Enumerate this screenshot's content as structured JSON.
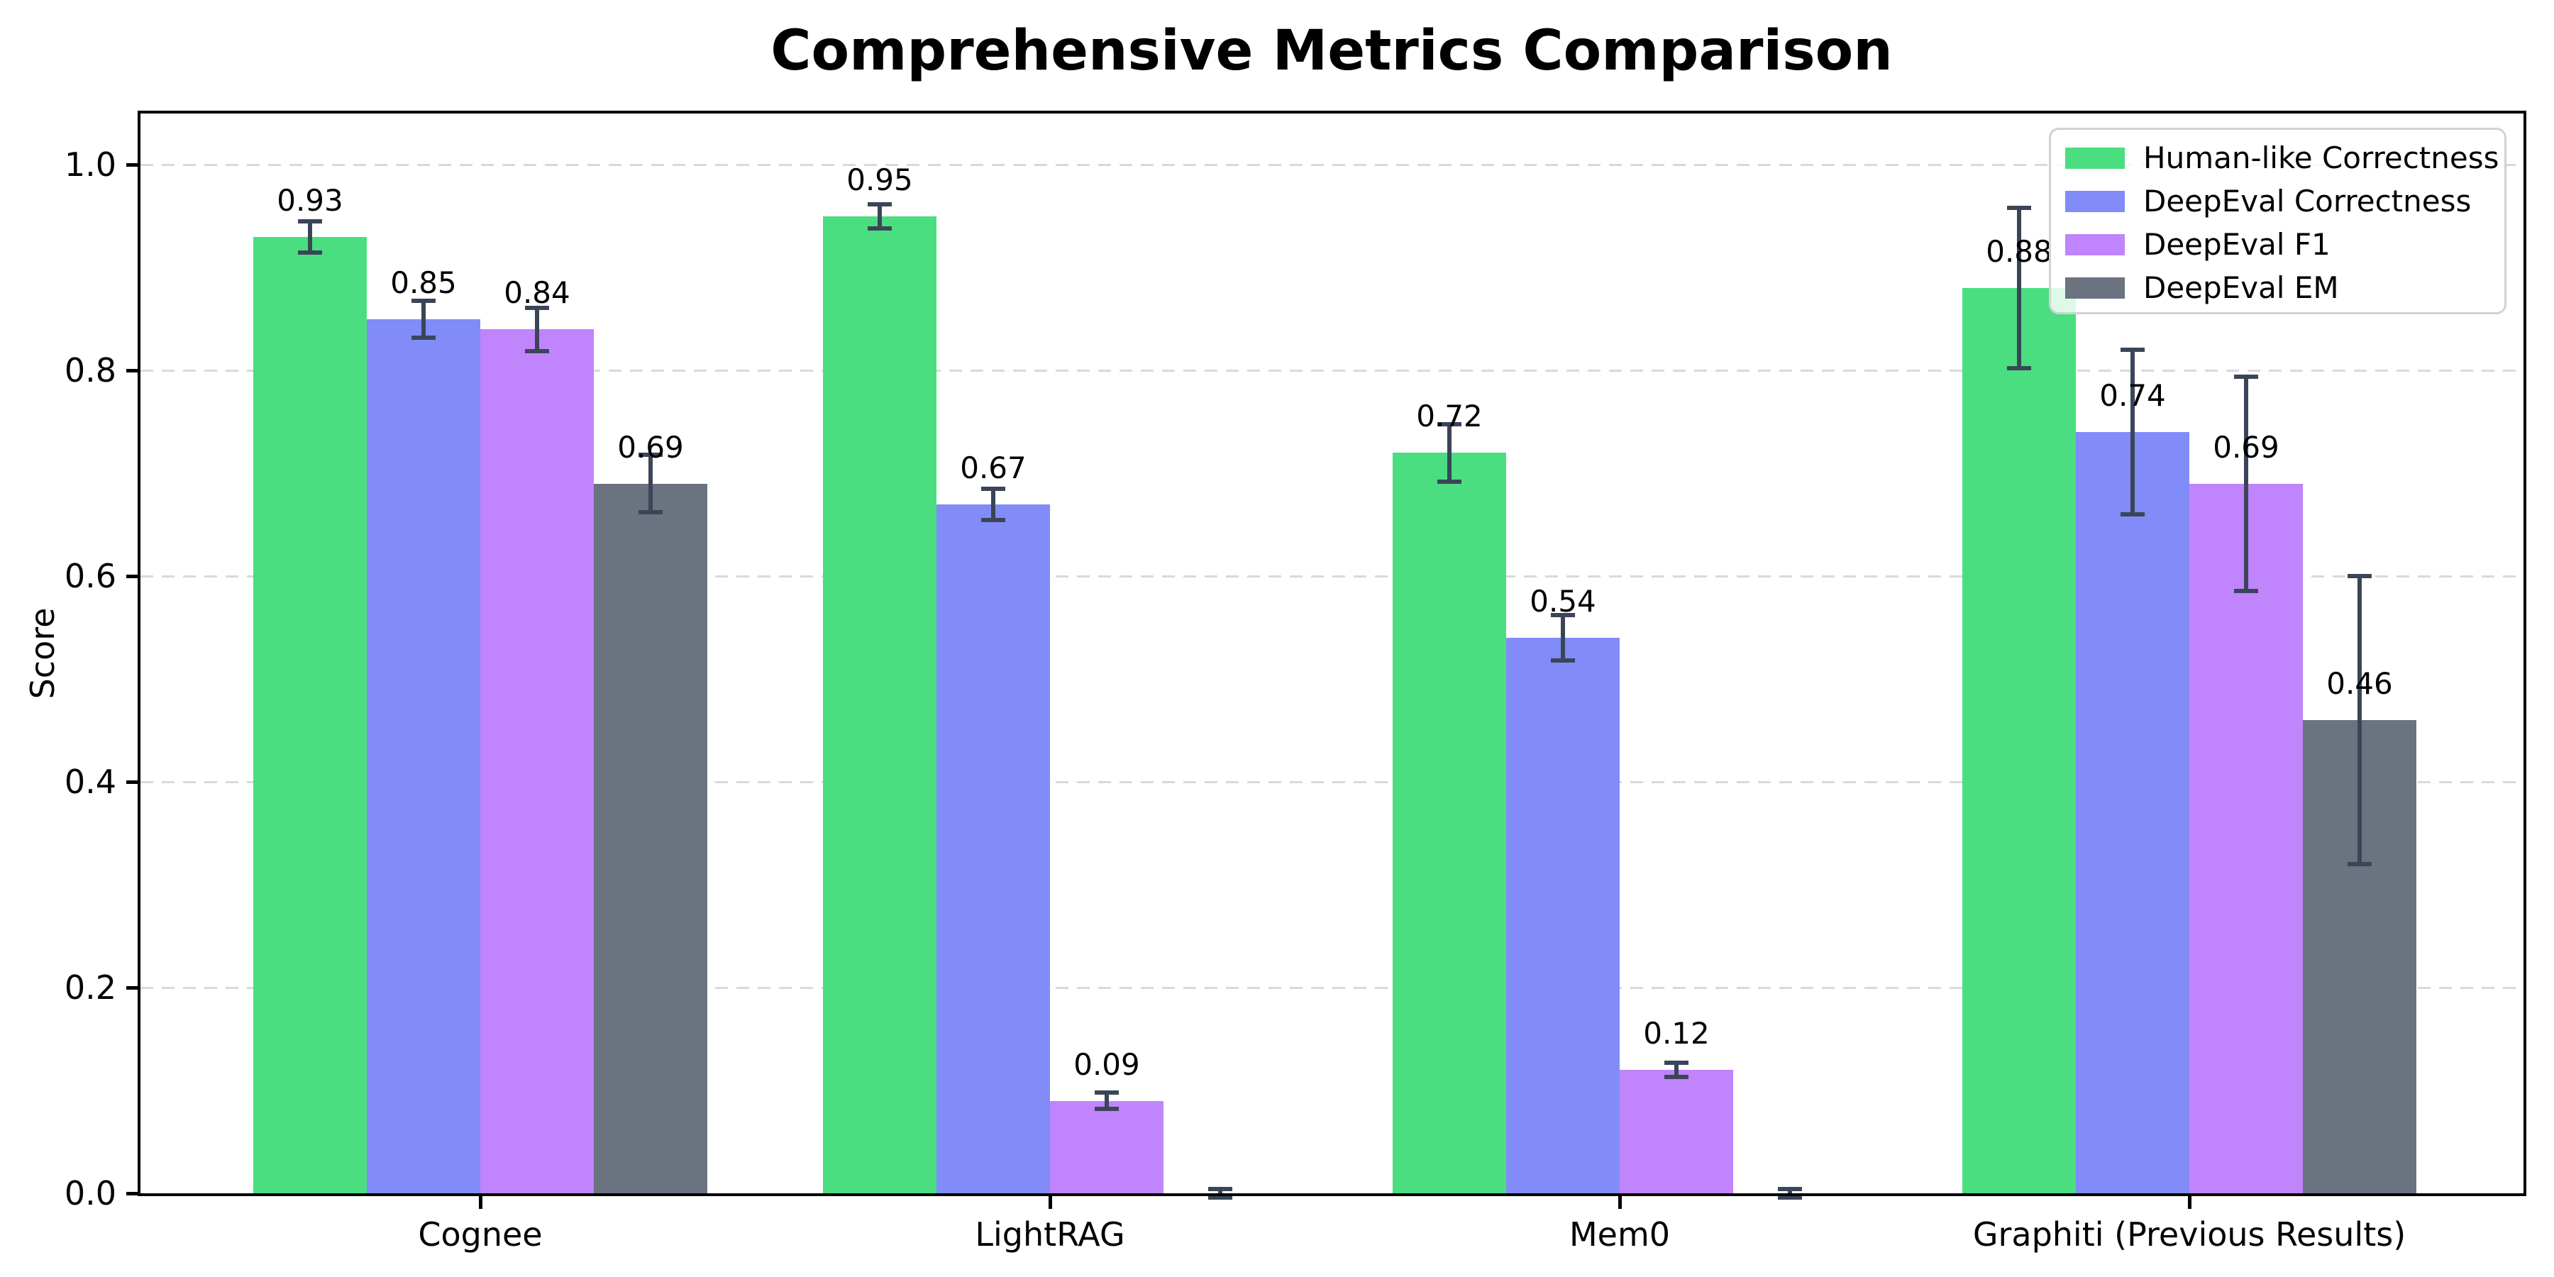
{
  "chart_data": {
    "type": "bar",
    "title": "Comprehensive Metrics Comparison",
    "ylabel": "Score",
    "xlabel": "",
    "categories": [
      "Cognee",
      "LightRAG",
      "Mem0",
      "Graphiti (Previous Results)"
    ],
    "series": [
      {
        "name": "Human-like Correctness",
        "color": "#4ade80",
        "values": [
          0.93,
          0.95,
          0.72,
          0.88
        ],
        "errors": [
          0.015,
          0.012,
          0.028,
          0.078
        ],
        "labels": [
          "0.93",
          "0.95",
          "0.72",
          "0.88"
        ]
      },
      {
        "name": "DeepEval Correctness",
        "color": "#818cf8",
        "values": [
          0.85,
          0.67,
          0.54,
          0.74
        ],
        "errors": [
          0.018,
          0.015,
          0.022,
          0.08
        ],
        "labels": [
          "0.85",
          "0.67",
          "0.54",
          "0.74"
        ]
      },
      {
        "name": "DeepEval F1",
        "color": "#c084fc",
        "values": [
          0.84,
          0.09,
          0.12,
          0.69
        ],
        "errors": [
          0.021,
          0.008,
          0.007,
          0.104
        ],
        "labels": [
          "0.84",
          "0.09",
          "0.12",
          "0.69"
        ]
      },
      {
        "name": "DeepEval EM",
        "color": "#6b7280",
        "values": [
          0.69,
          0.0,
          0.0,
          0.46
        ],
        "errors": [
          0.028,
          0.004,
          0.004,
          0.14
        ],
        "labels": [
          "0.69",
          "",
          "",
          "0.46"
        ]
      }
    ],
    "yticks": [
      "0.0",
      "0.2",
      "0.4",
      "0.6",
      "0.8",
      "1.0"
    ],
    "ylim": [
      0,
      1.05
    ],
    "grid": "horizontal-dashed",
    "grid_color": "#d9d9d9",
    "error_bar_color": "#3a4657",
    "legend_position": "upper-right"
  }
}
